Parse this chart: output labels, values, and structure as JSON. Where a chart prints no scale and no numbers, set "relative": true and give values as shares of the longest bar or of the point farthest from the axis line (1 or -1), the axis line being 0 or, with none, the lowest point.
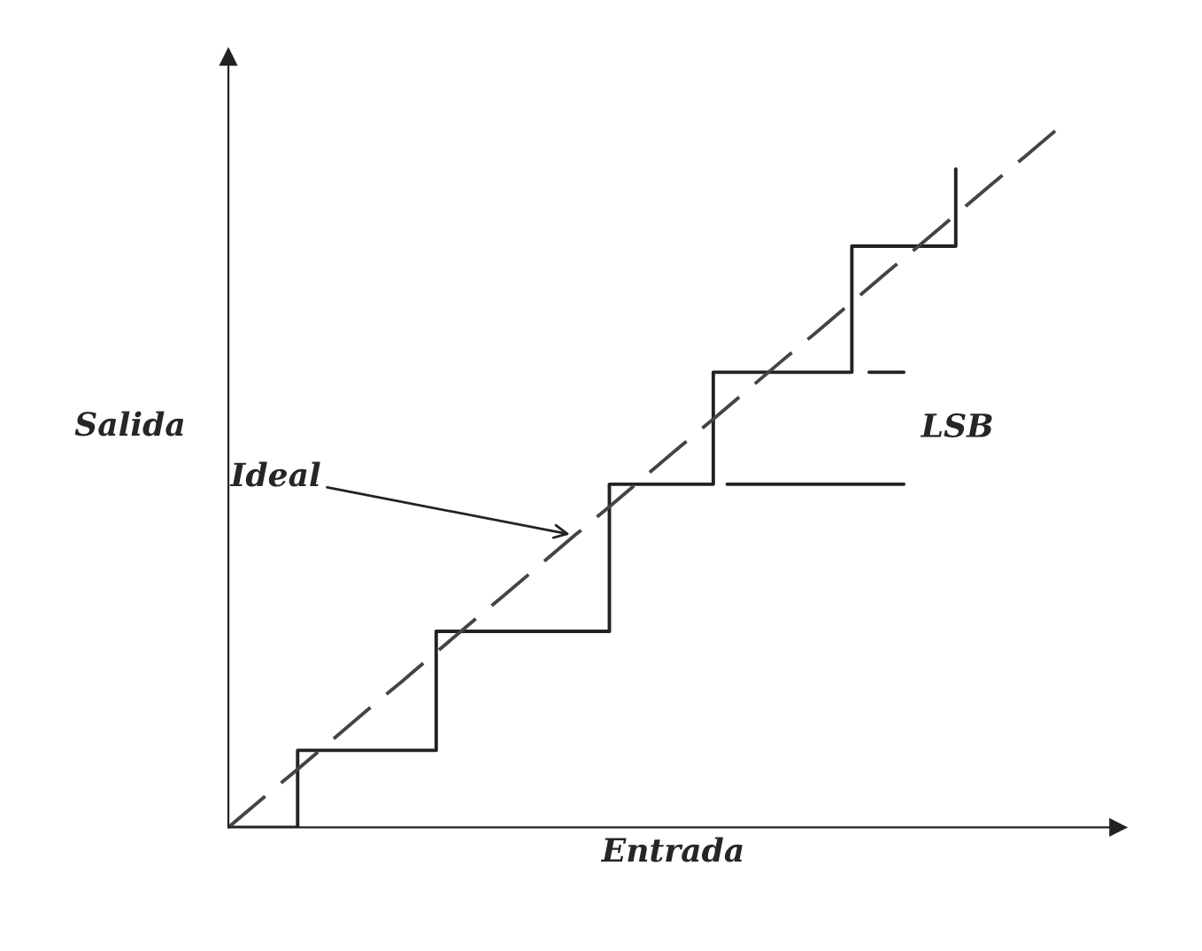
{
  "chart_data": {
    "type": "line",
    "relative": true,
    "xlabel": "Entrada",
    "ylabel": "Salida",
    "tick_labels": false,
    "legend": false,
    "categories": [
      null,
      null,
      null,
      null,
      null,
      null,
      null,
      null,
      null,
      null,
      null,
      null,
      null,
      null,
      null,
      null,
      null,
      null,
      null,
      null,
      null,
      null,
      null,
      null,
      null
    ],
    "series": [
      {
        "type": "step",
        "color": "#222222",
        "line_style": "solid",
        "values": [
          0,
          0,
          0.11,
          0.11,
          0.11,
          0.11,
          0.28,
          0.28,
          0.28,
          0.28,
          0.28,
          0.49,
          0.49,
          0.49,
          0.65,
          0.65,
          0.65,
          0.65,
          0.83,
          0.83,
          0.83,
          0.94,
          null,
          null,
          null
        ]
      },
      {
        "color": "#444444",
        "line_style": "dashed",
        "values": [
          0,
          0.042,
          0.083,
          0.125,
          0.167,
          0.208,
          0.25,
          0.292,
          0.333,
          0.375,
          0.417,
          0.458,
          0.5,
          0.542,
          0.583,
          0.625,
          0.667,
          0.708,
          0.75,
          0.792,
          0.833,
          0.875,
          0.917,
          0.958,
          1
        ]
      }
    ],
    "annotations": [
      "Ideal",
      "LSB"
    ]
  }
}
